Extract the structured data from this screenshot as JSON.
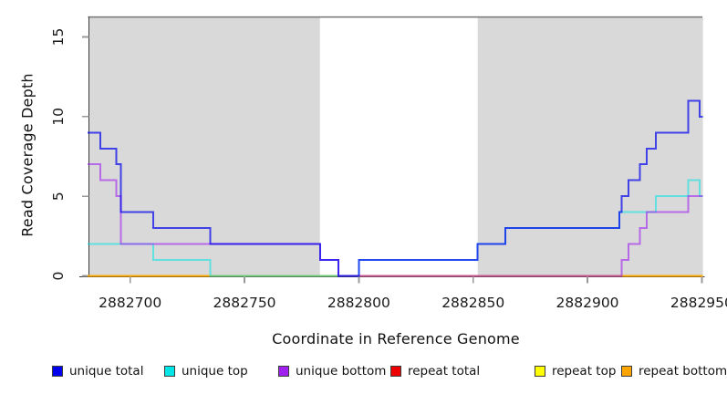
{
  "figure": {
    "x_axis_title": "Coordinate in Reference Genome",
    "y_axis_title": "Read Coverage Depth"
  },
  "chart_data": {
    "type": "line",
    "subtype": "step",
    "title": "",
    "xlabel": "Coordinate in Reference Genome",
    "ylabel": "Read Coverage Depth",
    "xlim": [
      2882681.4,
      2882950.5
    ],
    "ylim": [
      0,
      16.3
    ],
    "xticks": [
      2882700,
      2882750,
      2882800,
      2882850,
      2882900,
      2882950
    ],
    "xtick_labels": [
      "2882700",
      "2882750",
      "2882800",
      "2882850",
      "2882900",
      "2882950"
    ],
    "yticks": [
      0,
      5,
      10,
      15
    ],
    "ytick_labels": [
      "0",
      "5",
      "10",
      "15"
    ],
    "grid": false,
    "masked_regions": [
      [
        2882682,
        2882783
      ],
      [
        2882852,
        2882950.5
      ]
    ],
    "masked_region_color": "#d9d9d9",
    "top_rule_y": 16.25,
    "top_rule_color": "#7e7e7e",
    "axis_line_color": "#3a3a3a",
    "tick_color": "#999999",
    "tick_label_color": "#1a1a1a",
    "series": [
      {
        "name": "unique total",
        "color": "#0000ee",
        "steps": [
          [
            2882681.4,
            9
          ],
          [
            2882687,
            8
          ],
          [
            2882694,
            7
          ],
          [
            2882696,
            4
          ],
          [
            2882710,
            3
          ],
          [
            2882735,
            2
          ],
          [
            2882783,
            1
          ],
          [
            2882791,
            0
          ],
          [
            2882800,
            1
          ],
          [
            2882852,
            2
          ],
          [
            2882864,
            3
          ],
          [
            2882914,
            4
          ],
          [
            2882915,
            5
          ],
          [
            2882918,
            6
          ],
          [
            2882923,
            7
          ],
          [
            2882926,
            8
          ],
          [
            2882930,
            9
          ],
          [
            2882944,
            11
          ],
          [
            2882949,
            10
          ]
        ]
      },
      {
        "name": "unique top",
        "color": "#00e5e5",
        "steps": [
          [
            2882681.4,
            2
          ],
          [
            2882710,
            1
          ],
          [
            2882735,
            0
          ],
          [
            2882800,
            1
          ],
          [
            2882852,
            2
          ],
          [
            2882864,
            3
          ],
          [
            2882914,
            4
          ],
          [
            2882930,
            5
          ],
          [
            2882944,
            6
          ],
          [
            2882949,
            5
          ]
        ]
      },
      {
        "name": "unique bottom",
        "color": "#a020f0",
        "steps": [
          [
            2882681.4,
            7
          ],
          [
            2882687,
            6
          ],
          [
            2882694,
            5
          ],
          [
            2882696,
            2
          ],
          [
            2882783,
            1
          ],
          [
            2882791,
            0
          ],
          [
            2882915,
            1
          ],
          [
            2882918,
            2
          ],
          [
            2882923,
            3
          ],
          [
            2882926,
            4
          ],
          [
            2882944,
            5
          ]
        ]
      },
      {
        "name": "repeat total",
        "color": "#ee0000",
        "steps": [
          [
            2882681.4,
            0
          ]
        ]
      },
      {
        "name": "repeat top",
        "color": "#ffff00",
        "steps": [
          [
            2882681.4,
            0
          ]
        ]
      },
      {
        "name": "repeat bottom",
        "color": "#ffa500",
        "steps": [
          [
            2882681.4,
            0
          ]
        ]
      }
    ],
    "legend": {
      "position": "bottom",
      "items": [
        {
          "label": "unique total",
          "color": "#0000ee"
        },
        {
          "label": "unique top",
          "color": "#00e5e5"
        },
        {
          "label": "unique bottom",
          "color": "#a020f0"
        },
        {
          "label": "repeat total",
          "color": "#ee0000"
        },
        {
          "label": "repeat top",
          "color": "#ffff00"
        },
        {
          "label": "repeat bottom",
          "color": "#ffa500"
        }
      ]
    }
  }
}
